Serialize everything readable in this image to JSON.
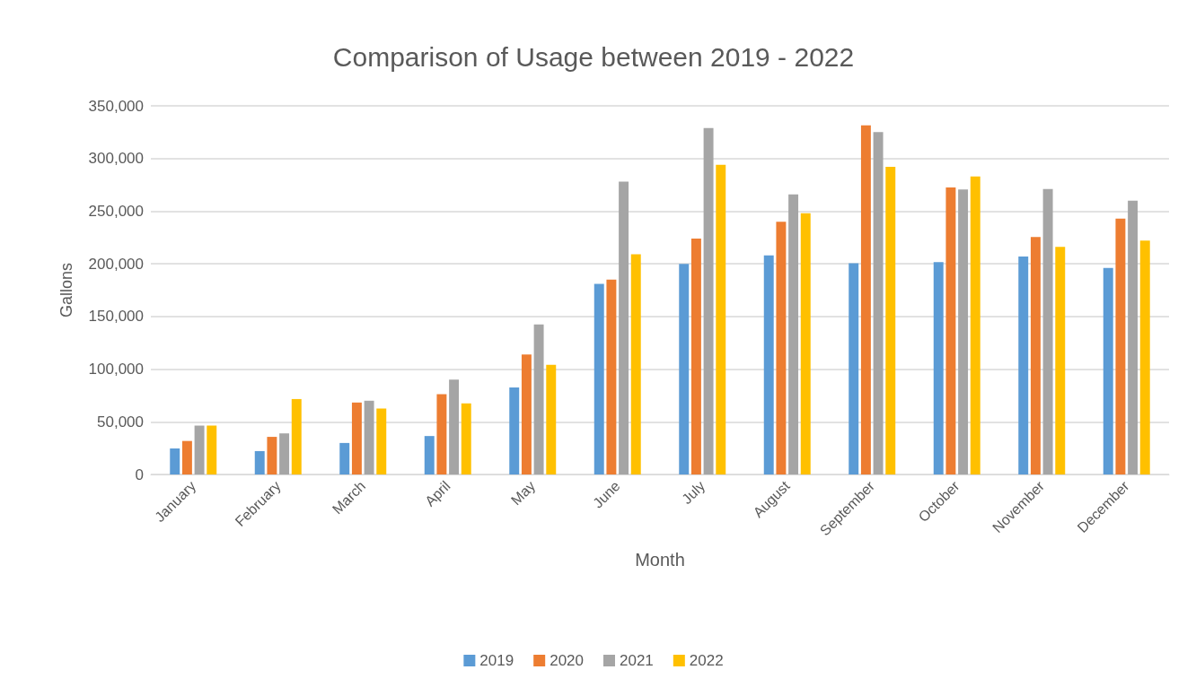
{
  "chart_data": {
    "type": "bar",
    "title": "Comparison of Usage between 2019 - 2022",
    "xlabel": "Month",
    "ylabel": "Gallons",
    "categories": [
      "January",
      "February",
      "March",
      "April",
      "May",
      "June",
      "July",
      "August",
      "September",
      "October",
      "November",
      "December"
    ],
    "series": [
      {
        "name": "2019",
        "color": "#5b9bd5",
        "values": [
          24700,
          22200,
          29900,
          36500,
          82600,
          181000,
          200000,
          208000,
          200500,
          201600,
          207000,
          196000
        ]
      },
      {
        "name": "2020",
        "color": "#ed7d31",
        "values": [
          31800,
          35700,
          68300,
          76300,
          114000,
          185000,
          224000,
          240000,
          331500,
          272600,
          225500,
          243000
        ]
      },
      {
        "name": "2021",
        "color": "#a5a5a5",
        "values": [
          46400,
          39000,
          70000,
          90000,
          142500,
          278000,
          329000,
          266000,
          325000,
          270500,
          271000,
          260000
        ]
      },
      {
        "name": "2022",
        "color": "#ffc000",
        "values": [
          46400,
          71600,
          62600,
          67500,
          104000,
          209000,
          294000,
          248000,
          292000,
          283000,
          216000,
          222000
        ]
      }
    ],
    "ylim": [
      0,
      350000
    ],
    "yticks": [
      0,
      {
        "value": 50000,
        "label": "50,000"
      },
      {
        "value": 100000,
        "label": "100,000"
      },
      {
        "value": 150000,
        "label": "150,000"
      },
      {
        "value": 200000,
        "label": "200,000"
      },
      {
        "value": 250000,
        "label": "250,000"
      },
      {
        "value": 300000,
        "label": "300,000"
      },
      {
        "value": 350000,
        "label": "350,000"
      }
    ],
    "grid": "y",
    "legend": "bottom"
  }
}
